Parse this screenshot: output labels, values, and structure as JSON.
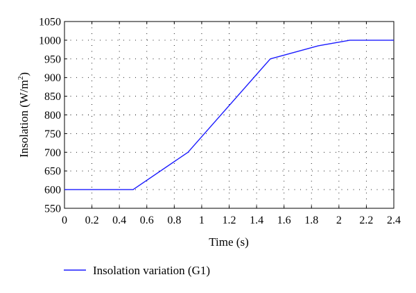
{
  "chart_data": {
    "type": "line",
    "xlabel": "Time (s)",
    "ylabel": "Insolation (W/m²)",
    "ylabel_base": "Insolation (W/m",
    "ylabel_sup": "2",
    "ylabel_close": ")",
    "xlim": [
      0,
      2.4
    ],
    "ylim": [
      550,
      1050
    ],
    "xticks": [
      0,
      0.2,
      0.4,
      0.6,
      0.8,
      1,
      1.2,
      1.4,
      1.6,
      1.8,
      2,
      2.2,
      2.4
    ],
    "yticks": [
      550,
      600,
      650,
      700,
      750,
      800,
      850,
      900,
      950,
      1000,
      1050
    ],
    "xtick_labels": [
      "0",
      "0.2",
      "0.4",
      "0.6",
      "0.8",
      "1",
      "1.2",
      "1.4",
      "1.6",
      "1.8",
      "2",
      "2.2",
      "2.4"
    ],
    "ytick_labels": [
      "550",
      "600",
      "650",
      "700",
      "750",
      "800",
      "850",
      "900",
      "950",
      "1000",
      "1050"
    ],
    "grid": true,
    "legend_position": "bottom-left-below-axes",
    "series": [
      {
        "name": "Insolation variation (G1)",
        "color": "#1a1aff",
        "x": [
          0,
          0.5,
          0.9,
          1.5,
          1.85,
          2.08,
          2.4
        ],
        "y": [
          600,
          600,
          700,
          950,
          985,
          1000,
          1000
        ]
      }
    ]
  }
}
